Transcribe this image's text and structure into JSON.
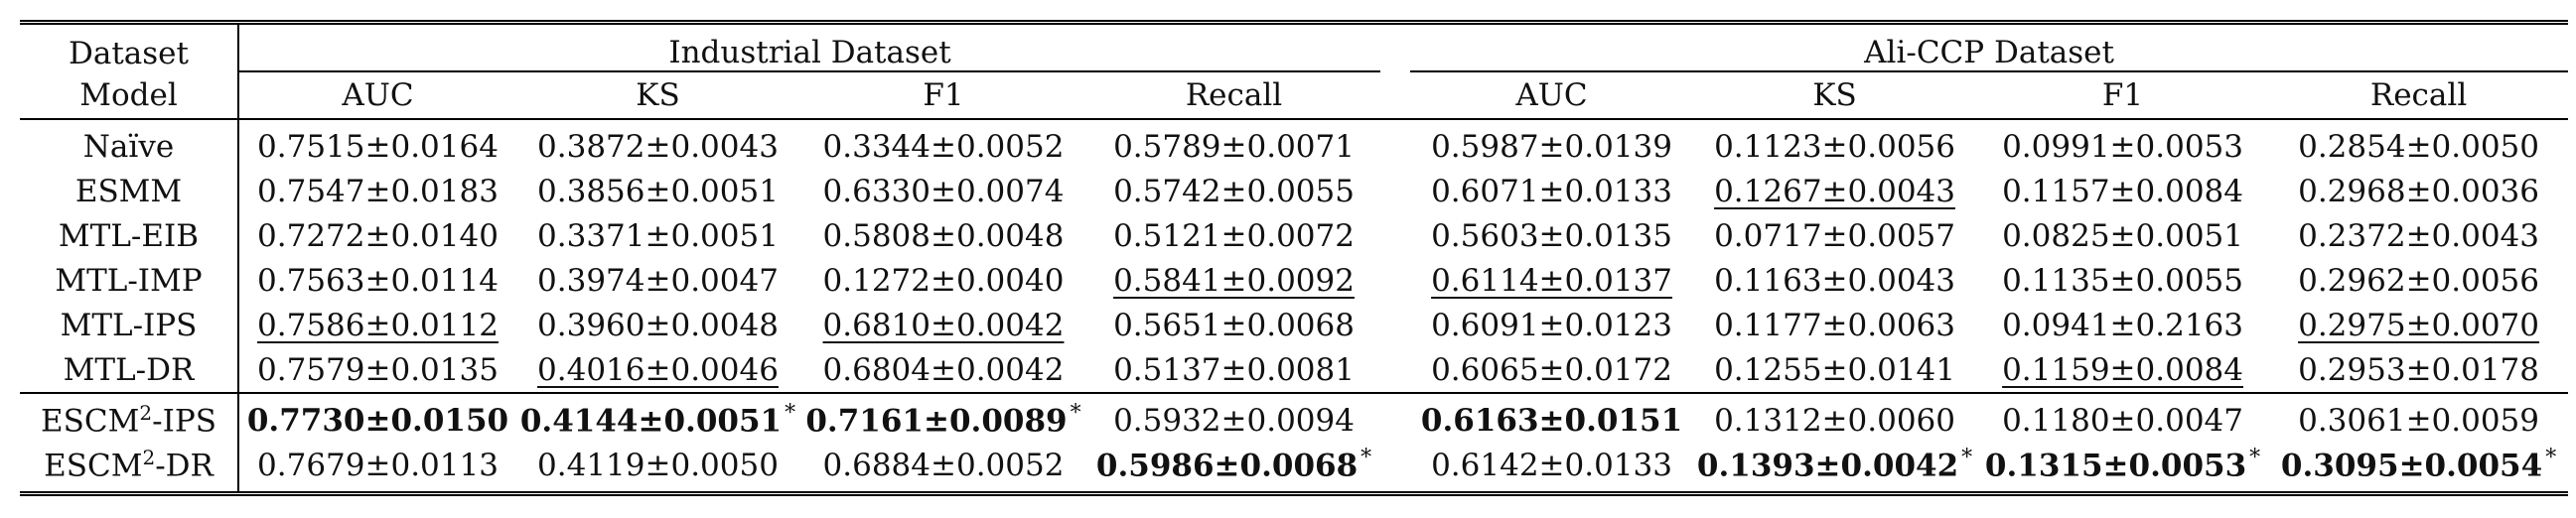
{
  "header": {
    "dataset_label": "Dataset",
    "model_label": "Model",
    "group_industrial": "Industrial Dataset",
    "group_ali": "Ali-CCP Dataset",
    "metrics": [
      "AUC",
      "KS",
      "F1",
      "Recall",
      "AUC",
      "KS",
      "F1",
      "Recall"
    ]
  },
  "rows": [
    {
      "model": "Naïve",
      "cells": [
        {
          "v": "0.7515±0.0164"
        },
        {
          "v": "0.3872±0.0043"
        },
        {
          "v": "0.3344±0.0052"
        },
        {
          "v": "0.5789±0.0071"
        },
        {
          "v": "0.5987±0.0139"
        },
        {
          "v": "0.1123±0.0056"
        },
        {
          "v": "0.0991±0.0053"
        },
        {
          "v": "0.2854±0.0050"
        }
      ]
    },
    {
      "model": "ESMM",
      "cells": [
        {
          "v": "0.7547±0.0183"
        },
        {
          "v": "0.3856±0.0051"
        },
        {
          "v": "0.6330±0.0074"
        },
        {
          "v": "0.5742±0.0055"
        },
        {
          "v": "0.6071±0.0133"
        },
        {
          "v": "0.1267±0.0043",
          "u": true
        },
        {
          "v": "0.1157±0.0084"
        },
        {
          "v": "0.2968±0.0036"
        }
      ]
    },
    {
      "model": "MTL-EIB",
      "cells": [
        {
          "v": "0.7272±0.0140"
        },
        {
          "v": "0.3371±0.0051"
        },
        {
          "v": "0.5808±0.0048"
        },
        {
          "v": "0.5121±0.0072"
        },
        {
          "v": "0.5603±0.0135"
        },
        {
          "v": "0.0717±0.0057"
        },
        {
          "v": "0.0825±0.0051"
        },
        {
          "v": "0.2372±0.0043"
        }
      ]
    },
    {
      "model": "MTL-IMP",
      "cells": [
        {
          "v": "0.7563±0.0114"
        },
        {
          "v": "0.3974±0.0047"
        },
        {
          "v": "0.1272±0.0040"
        },
        {
          "v": "0.5841±0.0092",
          "u": true
        },
        {
          "v": "0.6114±0.0137",
          "u": true
        },
        {
          "v": "0.1163±0.0043"
        },
        {
          "v": "0.1135±0.0055"
        },
        {
          "v": "0.2962±0.0056"
        }
      ]
    },
    {
      "model": "MTL-IPS",
      "cells": [
        {
          "v": "0.7586±0.0112",
          "u": true
        },
        {
          "v": "0.3960±0.0048"
        },
        {
          "v": "0.6810±0.0042",
          "u": true
        },
        {
          "v": "0.5651±0.0068"
        },
        {
          "v": "0.6091±0.0123"
        },
        {
          "v": "0.1177±0.0063"
        },
        {
          "v": "0.0941±0.2163"
        },
        {
          "v": "0.2975±0.0070",
          "u": true
        }
      ]
    },
    {
      "model": "MTL-DR",
      "cells": [
        {
          "v": "0.7579±0.0135"
        },
        {
          "v": "0.4016±0.0046",
          "u": true
        },
        {
          "v": "0.6804±0.0042"
        },
        {
          "v": "0.5137±0.0081"
        },
        {
          "v": "0.6065±0.0172"
        },
        {
          "v": "0.1255±0.0141"
        },
        {
          "v": "0.1159±0.0084",
          "u": true
        },
        {
          "v": "0.2953±0.0178"
        }
      ]
    }
  ],
  "esc_rows": [
    {
      "model_prefix": "ESCM",
      "model_sup": "2",
      "model_suffix": "-IPS",
      "cells": [
        {
          "v": "0.7730±0.0150",
          "b": true
        },
        {
          "v": "0.4144±0.0051",
          "b": true,
          "s": "*"
        },
        {
          "v": "0.7161±0.0089",
          "b": true,
          "s": "*"
        },
        {
          "v": "0.5932±0.0094"
        },
        {
          "v": "0.6163±0.0151",
          "b": true
        },
        {
          "v": "0.1312±0.0060"
        },
        {
          "v": "0.1180±0.0047"
        },
        {
          "v": "0.3061±0.0059"
        }
      ]
    },
    {
      "model_prefix": "ESCM",
      "model_sup": "2",
      "model_suffix": "-DR",
      "cells": [
        {
          "v": "0.7679±0.0113"
        },
        {
          "v": "0.4119±0.0050"
        },
        {
          "v": "0.6884±0.0052"
        },
        {
          "v": "0.5986±0.0068",
          "b": true,
          "s": "*"
        },
        {
          "v": "0.6142±0.0133"
        },
        {
          "v": "0.1393±0.0042",
          "b": true,
          "s": "*"
        },
        {
          "v": "0.1315±0.0053",
          "b": true,
          "s": "*"
        },
        {
          "v": "0.3095±0.0054",
          "b": true,
          "s": "*"
        }
      ]
    }
  ]
}
